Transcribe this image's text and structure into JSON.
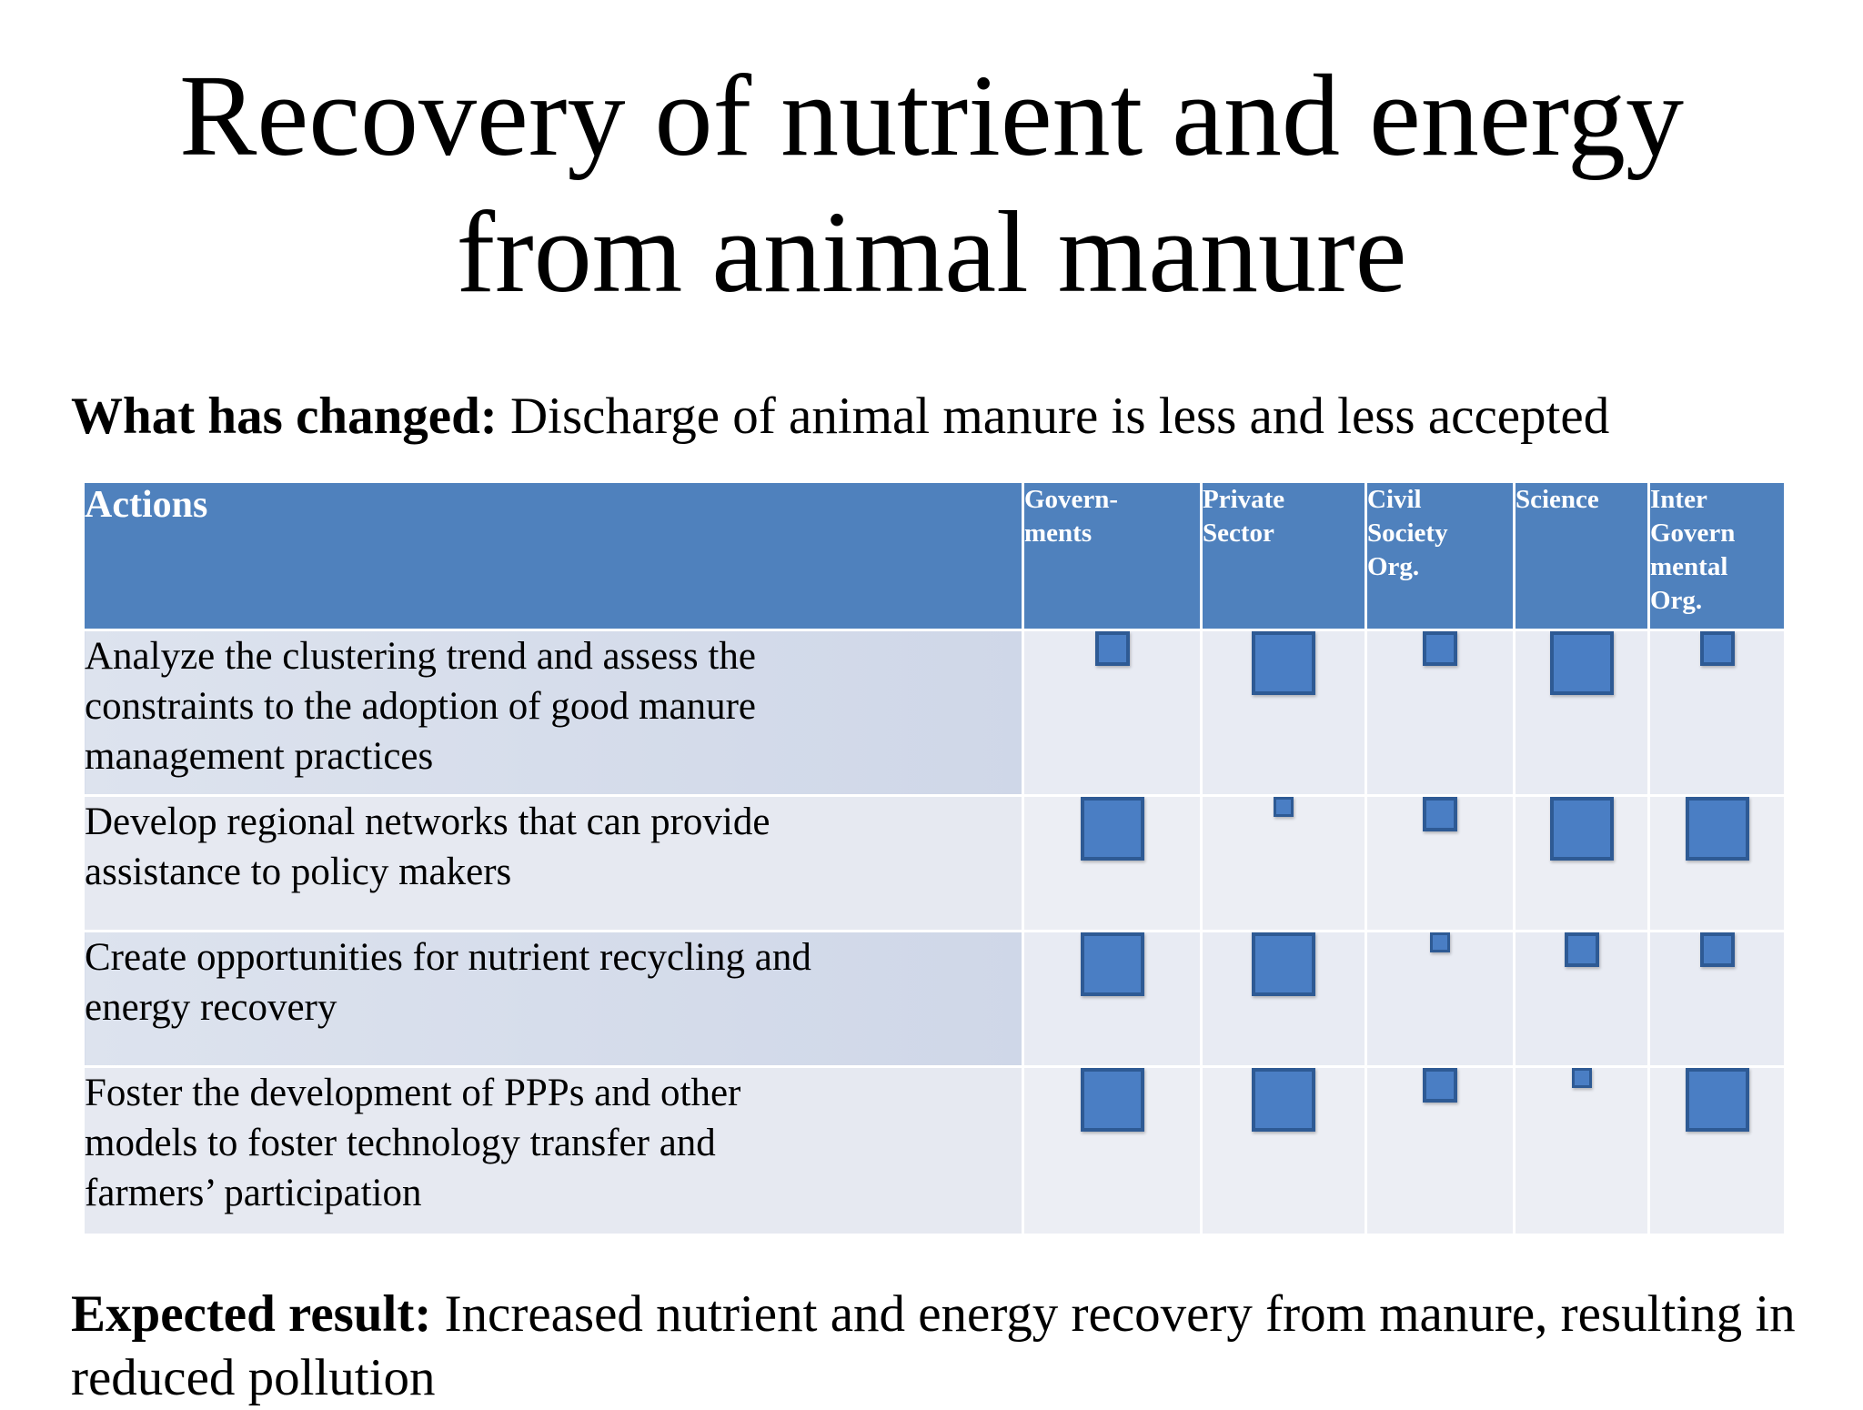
{
  "title_line1": "Recovery of nutrient and energy",
  "title_line2": "from animal manure",
  "changed": {
    "label": "What has changed:",
    "text": " Discharge of animal manure is less and less accepted"
  },
  "table": {
    "headers": {
      "actions": "Actions",
      "stakeholders": [
        [
          "Govern-",
          "ments"
        ],
        [
          "Private",
          "Sector"
        ],
        [
          "Civil",
          "Society",
          "Org."
        ],
        [
          "Science"
        ],
        [
          "Inter",
          "Govern",
          "mental",
          "Org."
        ]
      ]
    },
    "rows": [
      {
        "action": [
          "Analyze the clustering trend and assess the",
          "constraints to the adoption of good manure",
          "management practices"
        ],
        "levels": [
          "medium",
          "large",
          "medium",
          "large",
          "medium"
        ]
      },
      {
        "action": [
          "Develop regional networks that can provide",
          "assistance to policy makers"
        ],
        "levels": [
          "large",
          "small",
          "medium",
          "large",
          "large"
        ]
      },
      {
        "action": [
          "Create opportunities for nutrient recycling and",
          "energy recovery"
        ],
        "levels": [
          "large",
          "large",
          "small",
          "medium",
          "medium"
        ]
      },
      {
        "action": [
          "Foster the development of PPPs and other",
          "models to foster technology transfer and",
          "farmers’ participation"
        ],
        "levels": [
          "large",
          "large",
          "medium",
          "small",
          "large"
        ]
      }
    ]
  },
  "result": {
    "label": "Expected result:",
    "text": " Increased nutrient and energy recovery from manure, resulting in reduced pollution"
  }
}
